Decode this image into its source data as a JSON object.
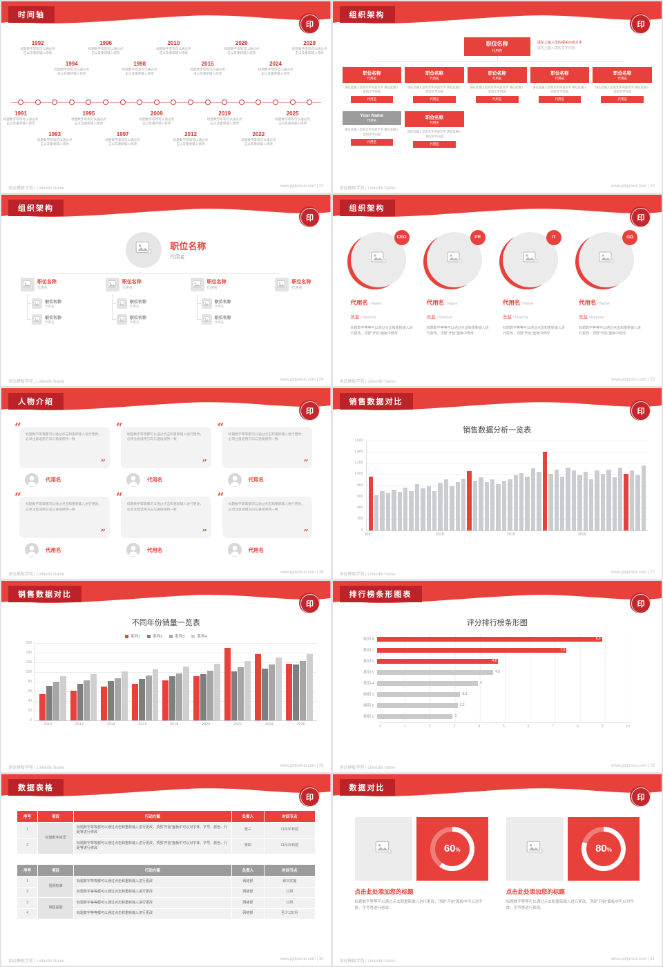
{
  "meta": {
    "footer_left": "读远模板学苑 | LinkedIn Name",
    "footer_site": "www.pptjunius.com",
    "seal_char": "印"
  },
  "colors": {
    "red": "#e8413c",
    "dark_red": "#bb2328",
    "bar_gray": "#c9c9c9",
    "text_gray": "#9a9a9a"
  },
  "slides": [
    {
      "type": "timeline",
      "title": "时间轴",
      "page": "22",
      "desc": "标题数字等等可以通过点击以及重新输入修改",
      "years_top": [
        "1992",
        "1994",
        "1996",
        "1998",
        "2010",
        "2015",
        "2020",
        "2024",
        "2029"
      ],
      "years_bottom": [
        "1991",
        "1993",
        "1995",
        "1997",
        "2009",
        "2012",
        "2019",
        "2022",
        "2025"
      ]
    },
    {
      "type": "org1",
      "title": "组织架构",
      "page": "23",
      "root": {
        "title": "职位名称",
        "sub": "代用名",
        "note1": "请在上输入您的相关内容文字",
        "note2": "请在上输入您的文字内容"
      },
      "box_title": "职位名称",
      "box_sub": "代用名",
      "desc": "请在此输入您的文字内容文字 请在此输入您的文字内容",
      "tag": "代用名",
      "mid_count": 5,
      "bottom": [
        {
          "title": "Your Name",
          "sub": "代用名",
          "gray": true
        },
        {
          "title": "职位名称",
          "sub": "代用名",
          "gray": false
        }
      ]
    },
    {
      "type": "org2",
      "title": "组织架构",
      "page": "24",
      "head": {
        "title": "职位名称",
        "sub": "代用名"
      },
      "parents": [
        {
          "title": "职位名称",
          "sub": "代用名",
          "children": 2
        },
        {
          "title": "职位名称",
          "sub": "代用名",
          "children": 2
        },
        {
          "title": "职位名称",
          "sub": "代用名",
          "children": 2
        },
        {
          "title": "职位名称",
          "sub": "代用名",
          "children": 0
        }
      ],
      "child_title": "职位名称",
      "child_sub": "代用名"
    },
    {
      "type": "org3",
      "title": "组织架构",
      "page": "25",
      "members": [
        {
          "badge": "CEO"
        },
        {
          "badge": "PR"
        },
        {
          "badge": "IT"
        },
        {
          "badge": "GD"
        }
      ],
      "name": "代用名",
      "name_en": "/ Name",
      "role": "总监",
      "role_en": "/ Director",
      "desc": "标题数字等等可以通过点击和重新输入进行更改，顶部“开始”面板中修改"
    },
    {
      "type": "people",
      "title": "人物介绍",
      "page": "26",
      "cards": 6,
      "quote": "标题数字等等都可以通过点击和重新输入进行更改，必须注意适用方向与语境保持一致",
      "name": "代用名"
    },
    {
      "type": "bar_monthly",
      "chart_index": 0,
      "title": "销售数据对比",
      "page": "27"
    },
    {
      "type": "bar_grouped",
      "chart_index": 1,
      "title": "销售数据对比",
      "page": "28"
    },
    {
      "type": "hbar",
      "chart_index": 2,
      "title": "排行榜条形图表",
      "page": "29"
    },
    {
      "type": "tables",
      "title": "数据表格",
      "page": "30",
      "table1": {
        "headers": [
          "序号",
          "项目",
          "行动方案",
          "负责人",
          "时间节点"
        ],
        "group": "标题数字资讯",
        "rows": [
          {
            "no": "1",
            "plan": "标题数字等等都可以通过点击和重新输入进行更改，顶部“开始”面板中可以对字体、字号、颜色、行距等进行修改",
            "owner": "张三",
            "time": "11月30日前"
          },
          {
            "no": "2",
            "plan": "标题数字等等都可以通过点击和重新输入进行更改，顶部“开始”面板中可以对字体、字号、颜色、行距等进行修改",
            "owner": "李四",
            "time": "11月15日前"
          }
        ]
      },
      "table2": {
        "headers": [
          "序号",
          "项目",
          "行动方案",
          "负责人",
          "时间节点"
        ],
        "groups": [
          "视频标准",
          "销售提能"
        ],
        "rows": [
          {
            "no": "1",
            "plan": "标题数字等等都可以通过点击和重新输入进行更改",
            "owner": "网络部",
            "time": "即日实施"
          },
          {
            "no": "2",
            "plan": "标题数字等等都可以通过点击和重新输入进行更改",
            "owner": "网络部",
            "time": "11月"
          },
          {
            "no": "3",
            "plan": "标题数字等等都可以通过点击和重新输入进行更改",
            "owner": "网络部",
            "time": "11月"
          },
          {
            "no": "4",
            "plan": "标题数字等等都可以通过点击和重新输入进行更改",
            "owner": "网络部",
            "time": "至少1次/月"
          }
        ]
      }
    },
    {
      "type": "compare",
      "title": "数据对比",
      "page": "31",
      "items": [
        {
          "percent": 60
        },
        {
          "percent": 80
        }
      ],
      "item_title": "点击此处添加您的标题",
      "item_desc": "标题数字等等可以通过点击和重新输入进行更改，顶部“开始”面板中可以对字体、字号等进行修改。"
    }
  ],
  "chart_data": [
    {
      "type": "bar",
      "title": "销售数据分析一览表",
      "x_groups": [
        "2017",
        "2018",
        "2019",
        "2020"
      ],
      "values": [
        950,
        620,
        700,
        660,
        720,
        680,
        760,
        700,
        820,
        740,
        780,
        700,
        850,
        900,
        780,
        860,
        920,
        1050,
        880,
        940,
        860,
        900,
        820,
        880,
        900,
        980,
        1020,
        950,
        1100,
        1040,
        1400,
        1000,
        1080,
        960,
        1120,
        1060,
        980,
        1040,
        900,
        1060,
        1000,
        1080,
        940,
        1120,
        1000,
        1060,
        980,
        1150
      ],
      "red_indices": [
        0,
        17,
        30,
        44
      ],
      "ylim": [
        0,
        1600
      ],
      "yticks": [
        "0",
        "200",
        "400",
        "600",
        "800",
        "1,000",
        "1,200",
        "1,400",
        "1,600"
      ]
    },
    {
      "type": "bar",
      "title": "不同年份销量一览表",
      "categories": [
        "2010",
        "2012",
        "2014",
        "2016",
        "2018",
        "2020",
        "2022",
        "2024",
        "2026"
      ],
      "series": [
        {
          "name": "系列1",
          "color": "#e8413c",
          "values": [
            55,
            62,
            70,
            76,
            84,
            92,
            150,
            138,
            118
          ]
        },
        {
          "name": "系列2",
          "color": "#7f7f7f",
          "values": [
            72,
            76,
            82,
            86,
            92,
            96,
            102,
            108,
            116
          ]
        },
        {
          "name": "系列3",
          "color": "#a6a6a6",
          "values": [
            80,
            84,
            88,
            94,
            98,
            104,
            110,
            116,
            124
          ]
        },
        {
          "name": "系列4",
          "color": "#cfcfcf",
          "values": [
            92,
            96,
            102,
            106,
            112,
            118,
            124,
            130,
            138
          ]
        }
      ],
      "ylim": [
        0,
        160
      ],
      "yticks": [
        "0",
        "20",
        "40",
        "60",
        "80",
        "100",
        "120",
        "140",
        "160"
      ]
    },
    {
      "type": "hbar",
      "title": "评分排行榜条形图",
      "categories": [
        "系列 8",
        "系列 7",
        "系列 6",
        "系列 5",
        "系列 4",
        "类别 3",
        "类别 2",
        "类别 1"
      ],
      "values": [
        8.9,
        7.5,
        4.8,
        4.6,
        4,
        3.3,
        3.2,
        3
      ],
      "colors": [
        "red",
        "red",
        "red",
        "gray",
        "gray",
        "gray",
        "gray",
        "gray"
      ],
      "xlim": [
        0,
        10
      ],
      "xticks": [
        "0",
        "1",
        "2",
        "3",
        "4",
        "5",
        "6",
        "7",
        "8",
        "9",
        "10"
      ]
    }
  ]
}
